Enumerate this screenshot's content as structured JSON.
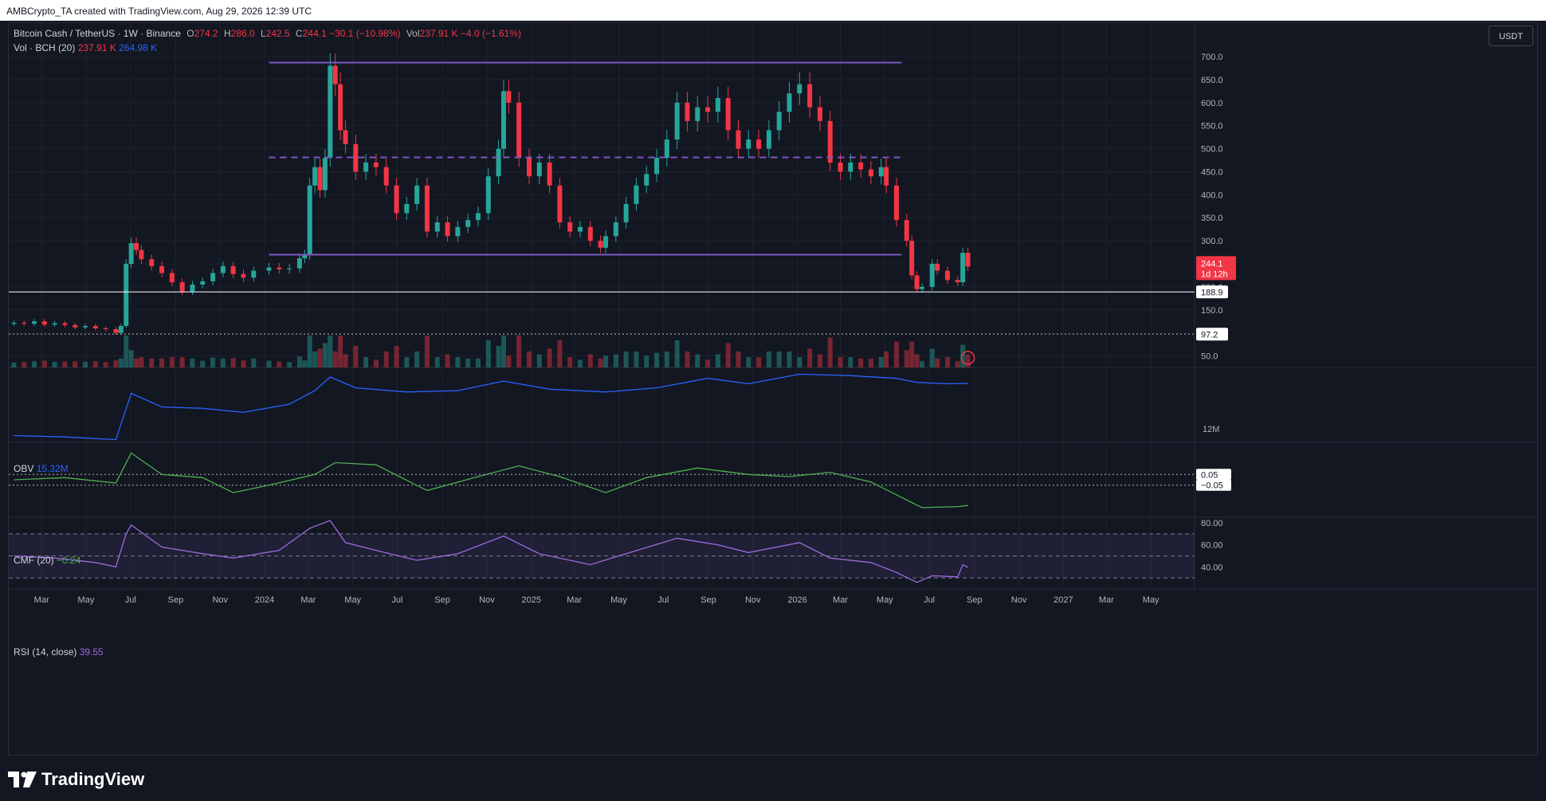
{
  "header": {
    "caption": "AMBCrypto_TA created with TradingView.com, Aug 29, 2026 12:39 UTC"
  },
  "main_legend": {
    "symbol": "Bitcoin Cash / TetherUS · 1W · Binance",
    "o_label": "O",
    "o_value": "274.2",
    "h_label": "H",
    "h_value": "286.0",
    "l_label": "L",
    "l_value": "242.5",
    "c_label": "C",
    "c_value": "244.1",
    "change": "−30.1 (−10.98%)",
    "vol_label": "Vol",
    "vol_value": "237.91 K",
    "vol_change": "−4.0 (−1.61%)"
  },
  "vol_legend": {
    "label": "Vol · BCH (20)",
    "v1": "237.91 K",
    "v2": "264.98 K"
  },
  "obv_legend": {
    "label": "OBV",
    "value": "15.32M"
  },
  "cmf_legend": {
    "label": "CMF (20)",
    "value": "−0.24"
  },
  "rsi_legend": {
    "label": "RSI (14, close)",
    "value": "39.55"
  },
  "currency_button": "USDT",
  "price_badge": {
    "price": "244.1",
    "countdown": "1d 12h"
  },
  "level_labels": {
    "support": "188.9",
    "low": "97.2",
    "cmf_upper": "0.05",
    "cmf_lower": "−0.05",
    "obv_axis": "12M"
  },
  "footer": {
    "brand": "TradingView"
  },
  "colors": {
    "background": "#131722",
    "up": "#26a69a",
    "down": "#f23645",
    "zone": "#7e57c2",
    "obv": "#2962ff",
    "cmf": "#4caf50",
    "rsi": "#9c6ade"
  },
  "chart_data": {
    "type": "candlestick",
    "interval": "1W",
    "x_range": [
      "2023-01-15",
      "2027-06-30"
    ],
    "x_ticks": [
      {
        "label": "Mar",
        "date": "2023-03-01"
      },
      {
        "label": "May",
        "date": "2023-05-01"
      },
      {
        "label": "Jul",
        "date": "2023-07-01"
      },
      {
        "label": "Sep",
        "date": "2023-09-01"
      },
      {
        "label": "Nov",
        "date": "2023-11-01"
      },
      {
        "label": "2024",
        "date": "2024-01-01"
      },
      {
        "label": "Mar",
        "date": "2024-03-01"
      },
      {
        "label": "May",
        "date": "2024-05-01"
      },
      {
        "label": "Jul",
        "date": "2024-07-01"
      },
      {
        "label": "Sep",
        "date": "2024-09-01"
      },
      {
        "label": "Nov",
        "date": "2024-11-01"
      },
      {
        "label": "2025",
        "date": "2025-01-01"
      },
      {
        "label": "Mar",
        "date": "2025-03-01"
      },
      {
        "label": "May",
        "date": "2025-05-01"
      },
      {
        "label": "Jul",
        "date": "2025-07-01"
      },
      {
        "label": "Sep",
        "date": "2025-09-01"
      },
      {
        "label": "Nov",
        "date": "2025-11-01"
      },
      {
        "label": "2026",
        "date": "2026-01-01"
      },
      {
        "label": "Mar",
        "date": "2026-03-01"
      },
      {
        "label": "May",
        "date": "2026-05-01"
      },
      {
        "label": "Jul",
        "date": "2026-07-01"
      },
      {
        "label": "Sep",
        "date": "2026-09-01"
      },
      {
        "label": "Nov",
        "date": "2026-11-01"
      },
      {
        "label": "2027",
        "date": "2027-01-01"
      },
      {
        "label": "Mar",
        "date": "2027-03-01"
      },
      {
        "label": "May",
        "date": "2027-05-01"
      }
    ],
    "price_axis": {
      "ylim": [
        25,
        745
      ],
      "ticks": [
        50,
        100,
        150,
        200,
        250,
        300,
        350,
        400,
        450,
        500,
        550,
        600,
        650,
        700
      ]
    },
    "price_close_points": [
      [
        "2023-01-22",
        122
      ],
      [
        "2023-02-05",
        120
      ],
      [
        "2023-02-19",
        125
      ],
      [
        "2023-03-05",
        118
      ],
      [
        "2023-03-19",
        121
      ],
      [
        "2023-04-02",
        117
      ],
      [
        "2023-04-16",
        112
      ],
      [
        "2023-04-30",
        115
      ],
      [
        "2023-05-14",
        110
      ],
      [
        "2023-05-28",
        108
      ],
      [
        "2023-06-11",
        100
      ],
      [
        "2023-06-18",
        115
      ],
      [
        "2023-06-25",
        250
      ],
      [
        "2023-07-02",
        295
      ],
      [
        "2023-07-09",
        280
      ],
      [
        "2023-07-16",
        260
      ],
      [
        "2023-07-30",
        245
      ],
      [
        "2023-08-13",
        230
      ],
      [
        "2023-08-27",
        210
      ],
      [
        "2023-09-10",
        190
      ],
      [
        "2023-09-24",
        205
      ],
      [
        "2023-10-08",
        212
      ],
      [
        "2023-10-22",
        230
      ],
      [
        "2023-11-05",
        245
      ],
      [
        "2023-11-19",
        228
      ],
      [
        "2023-12-03",
        220
      ],
      [
        "2023-12-17",
        235
      ],
      [
        "2024-01-07",
        242
      ],
      [
        "2024-01-21",
        238
      ],
      [
        "2024-02-04",
        240
      ],
      [
        "2024-02-18",
        262
      ],
      [
        "2024-02-25",
        270
      ],
      [
        "2024-03-03",
        420
      ],
      [
        "2024-03-10",
        460
      ],
      [
        "2024-03-17",
        410
      ],
      [
        "2024-03-24",
        480
      ],
      [
        "2024-03-31",
        680
      ],
      [
        "2024-04-07",
        640
      ],
      [
        "2024-04-14",
        540
      ],
      [
        "2024-04-21",
        510
      ],
      [
        "2024-05-05",
        450
      ],
      [
        "2024-05-19",
        470
      ],
      [
        "2024-06-02",
        460
      ],
      [
        "2024-06-16",
        420
      ],
      [
        "2024-06-30",
        360
      ],
      [
        "2024-07-14",
        380
      ],
      [
        "2024-07-28",
        420
      ],
      [
        "2024-08-11",
        320
      ],
      [
        "2024-08-25",
        340
      ],
      [
        "2024-09-08",
        310
      ],
      [
        "2024-09-22",
        330
      ],
      [
        "2024-10-06",
        345
      ],
      [
        "2024-10-20",
        360
      ],
      [
        "2024-11-03",
        440
      ],
      [
        "2024-11-17",
        500
      ],
      [
        "2024-11-24",
        625
      ],
      [
        "2024-12-01",
        600
      ],
      [
        "2024-12-15",
        480
      ],
      [
        "2024-12-29",
        440
      ],
      [
        "2025-01-12",
        470
      ],
      [
        "2025-01-26",
        420
      ],
      [
        "2025-02-09",
        340
      ],
      [
        "2025-02-23",
        320
      ],
      [
        "2025-03-09",
        330
      ],
      [
        "2025-03-23",
        300
      ],
      [
        "2025-04-06",
        285
      ],
      [
        "2025-04-13",
        310
      ],
      [
        "2025-04-27",
        340
      ],
      [
        "2025-05-11",
        380
      ],
      [
        "2025-05-25",
        420
      ],
      [
        "2025-06-08",
        445
      ],
      [
        "2025-06-22",
        480
      ],
      [
        "2025-07-06",
        520
      ],
      [
        "2025-07-20",
        600
      ],
      [
        "2025-08-03",
        560
      ],
      [
        "2025-08-17",
        590
      ],
      [
        "2025-08-31",
        580
      ],
      [
        "2025-09-14",
        610
      ],
      [
        "2025-09-28",
        540
      ],
      [
        "2025-10-12",
        500
      ],
      [
        "2025-10-26",
        520
      ],
      [
        "2025-11-09",
        500
      ],
      [
        "2025-11-23",
        540
      ],
      [
        "2025-12-07",
        580
      ],
      [
        "2025-12-21",
        620
      ],
      [
        "2026-01-04",
        640
      ],
      [
        "2026-01-18",
        590
      ],
      [
        "2026-02-01",
        560
      ],
      [
        "2026-02-15",
        470
      ],
      [
        "2026-03-01",
        450
      ],
      [
        "2026-03-15",
        470
      ],
      [
        "2026-03-29",
        455
      ],
      [
        "2026-04-12",
        440
      ],
      [
        "2026-04-26",
        460
      ],
      [
        "2026-05-03",
        420
      ],
      [
        "2026-05-17",
        345
      ],
      [
        "2026-05-31",
        300
      ],
      [
        "2026-06-07",
        225
      ],
      [
        "2026-06-14",
        195
      ],
      [
        "2026-06-21",
        200
      ],
      [
        "2026-07-05",
        250
      ],
      [
        "2026-07-12",
        235
      ],
      [
        "2026-07-26",
        215
      ],
      [
        "2026-08-09",
        210
      ],
      [
        "2026-08-16",
        274
      ],
      [
        "2026-08-23",
        244.1
      ]
    ],
    "current_price": 244.1,
    "zones": [
      {
        "type": "resistance",
        "price": 687,
        "from": "2024-01-07",
        "to": "2026-05-24",
        "style": "solid"
      },
      {
        "type": "mid",
        "price": 481,
        "from": "2024-01-07",
        "to": "2026-05-24",
        "style": "dashed"
      },
      {
        "type": "support",
        "price": 270,
        "from": "2024-01-07",
        "to": "2026-05-24",
        "style": "solid"
      }
    ],
    "horizontal_levels": [
      {
        "price": 188.9,
        "style": "solid",
        "color": "#ffffff"
      },
      {
        "price": 97.2,
        "style": "dotted",
        "color": "#b2b5be"
      }
    ],
    "obv_axis": {
      "ylim": [
        11.0,
        16.5
      ],
      "ticks": [
        12
      ]
    },
    "obv_points": [
      [
        "2023-01-22",
        11.5
      ],
      [
        "2023-04-02",
        11.4
      ],
      [
        "2023-06-11",
        11.2
      ],
      [
        "2023-07-02",
        14.6
      ],
      [
        "2023-08-13",
        13.6
      ],
      [
        "2023-10-08",
        13.5
      ],
      [
        "2023-12-03",
        13.2
      ],
      [
        "2024-02-04",
        13.8
      ],
      [
        "2024-03-10",
        14.8
      ],
      [
        "2024-03-31",
        15.8
      ],
      [
        "2024-05-05",
        15.0
      ],
      [
        "2024-07-14",
        14.7
      ],
      [
        "2024-09-22",
        14.8
      ],
      [
        "2024-11-24",
        15.5
      ],
      [
        "2025-01-26",
        14.9
      ],
      [
        "2025-04-13",
        14.7
      ],
      [
        "2025-06-22",
        15.0
      ],
      [
        "2025-08-31",
        15.7
      ],
      [
        "2025-10-26",
        15.3
      ],
      [
        "2026-01-04",
        16.0
      ],
      [
        "2026-03-15",
        15.9
      ],
      [
        "2026-05-17",
        15.7
      ],
      [
        "2026-06-14",
        15.4
      ],
      [
        "2026-07-26",
        15.3
      ],
      [
        "2026-08-23",
        15.32
      ]
    ],
    "cmf_axis": {
      "ylim": [
        -0.35,
        0.35
      ],
      "levels": [
        0.05,
        -0.05
      ]
    },
    "cmf_points": [
      [
        "2023-01-22",
        0.0
      ],
      [
        "2023-04-02",
        0.02
      ],
      [
        "2023-06-11",
        -0.03
      ],
      [
        "2023-07-02",
        0.25
      ],
      [
        "2023-08-13",
        0.05
      ],
      [
        "2023-10-08",
        0.02
      ],
      [
        "2023-11-19",
        -0.12
      ],
      [
        "2024-01-07",
        -0.05
      ],
      [
        "2024-03-10",
        0.05
      ],
      [
        "2024-04-07",
        0.16
      ],
      [
        "2024-06-02",
        0.14
      ],
      [
        "2024-08-11",
        -0.1
      ],
      [
        "2024-10-20",
        0.03
      ],
      [
        "2024-12-15",
        0.13
      ],
      [
        "2025-02-09",
        0.03
      ],
      [
        "2025-04-13",
        -0.12
      ],
      [
        "2025-06-08",
        0.02
      ],
      [
        "2025-08-17",
        0.11
      ],
      [
        "2025-10-26",
        0.05
      ],
      [
        "2025-12-21",
        0.03
      ],
      [
        "2026-02-15",
        0.07
      ],
      [
        "2026-04-12",
        -0.02
      ],
      [
        "2026-05-17",
        -0.14
      ],
      [
        "2026-06-21",
        -0.26
      ],
      [
        "2026-08-09",
        -0.25
      ],
      [
        "2026-08-23",
        -0.24
      ]
    ],
    "rsi_axis": {
      "ylim": [
        20,
        85
      ],
      "ticks": [
        40,
        60,
        80
      ],
      "band": [
        30,
        70
      ],
      "mid": 50
    },
    "rsi_points": [
      [
        "2023-01-22",
        50
      ],
      [
        "2023-03-19",
        48
      ],
      [
        "2023-05-14",
        44
      ],
      [
        "2023-06-11",
        40
      ],
      [
        "2023-06-25",
        70
      ],
      [
        "2023-07-02",
        78
      ],
      [
        "2023-08-13",
        58
      ],
      [
        "2023-10-08",
        52
      ],
      [
        "2023-11-19",
        48
      ],
      [
        "2024-01-21",
        55
      ],
      [
        "2024-03-03",
        75
      ],
      [
        "2024-03-31",
        82
      ],
      [
        "2024-04-21",
        62
      ],
      [
        "2024-06-02",
        55
      ],
      [
        "2024-07-28",
        46
      ],
      [
        "2024-09-22",
        52
      ],
      [
        "2024-11-24",
        68
      ],
      [
        "2025-01-12",
        52
      ],
      [
        "2025-03-23",
        42
      ],
      [
        "2025-05-11",
        52
      ],
      [
        "2025-07-20",
        66
      ],
      [
        "2025-09-14",
        60
      ],
      [
        "2025-10-26",
        53
      ],
      [
        "2026-01-04",
        62
      ],
      [
        "2026-02-15",
        48
      ],
      [
        "2026-04-12",
        44
      ],
      [
        "2026-05-17",
        35
      ],
      [
        "2026-06-14",
        26
      ],
      [
        "2026-07-05",
        32
      ],
      [
        "2026-08-09",
        31
      ],
      [
        "2026-08-16",
        42
      ],
      [
        "2026-08-23",
        39.55
      ]
    ]
  }
}
